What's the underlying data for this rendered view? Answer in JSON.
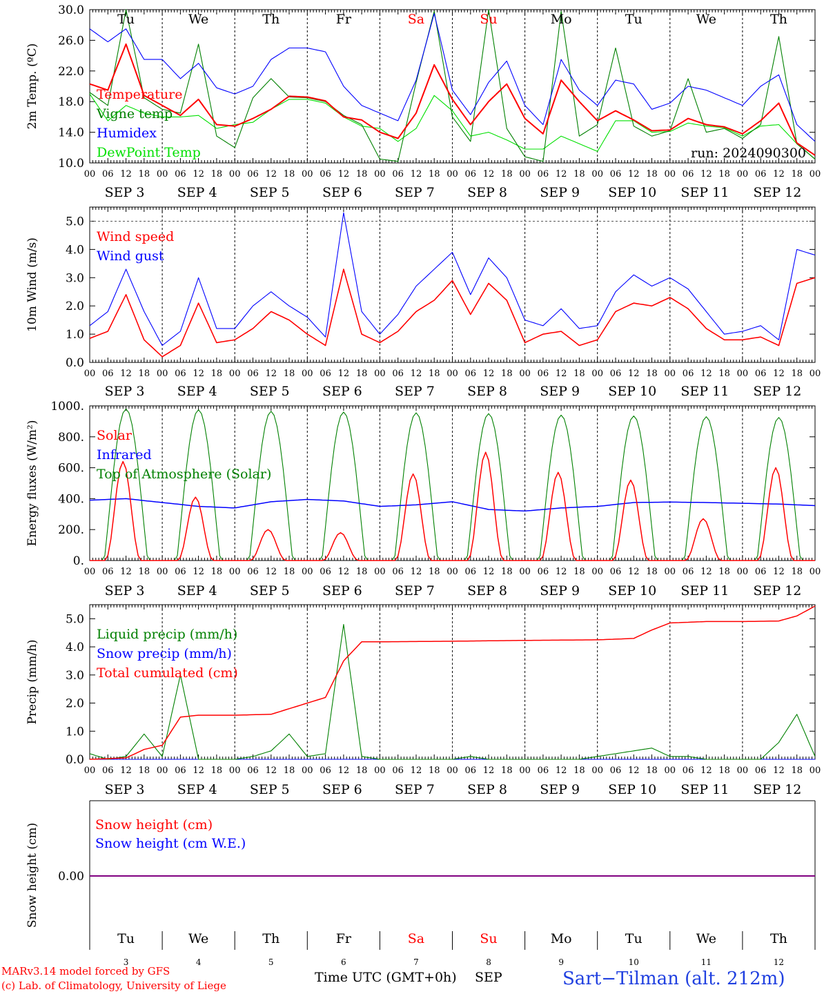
{
  "days": {
    "weekdays": [
      "Tu",
      "We",
      "Th",
      "Fr",
      "Sa",
      "Su",
      "Mo",
      "Tu",
      "We",
      "Th"
    ],
    "weekend_flags": [
      false,
      false,
      false,
      false,
      true,
      true,
      false,
      false,
      false,
      false
    ],
    "date_labels": [
      "SEP  3",
      "SEP  4",
      "SEP  5",
      "SEP  6",
      "SEP  7",
      "SEP  8",
      "SEP  9",
      "SEP 10",
      "SEP 11",
      "SEP 12"
    ],
    "day_numbers": [
      "3",
      "4",
      "5",
      "6",
      "7",
      "8",
      "9",
      "10",
      "11",
      "12"
    ],
    "hour_ticks": [
      "00",
      "06",
      "12",
      "18"
    ],
    "final_hour_tick": "00"
  },
  "colors": {
    "red": "#ff0000",
    "green": "#008000",
    "blue": "#0000ff",
    "lightgreen": "#00e000",
    "purple": "#800080",
    "weekend": "#ff0000",
    "axis": "#000000"
  },
  "chart_data": [
    {
      "type": "line",
      "ylabel": "2m Temp. (ºC)",
      "ylim": [
        10.0,
        30.0
      ],
      "yticks": [
        "10.0",
        "14.0",
        "18.0",
        "22.0",
        "26.0",
        "30.0"
      ],
      "annotation": "run: 2024090300",
      "x_unit": "hours since Sep 3 00 UTC",
      "series": [
        {
          "name": "Temperature",
          "color": "#ff0000",
          "x": [
            0,
            6,
            12,
            18,
            24,
            30,
            36,
            42,
            48,
            54,
            60,
            66,
            72,
            78,
            84,
            90,
            96,
            102,
            108,
            114,
            120,
            126,
            132,
            138,
            144,
            150,
            156,
            162,
            168,
            174,
            180,
            186,
            192,
            198,
            204,
            210,
            216,
            222,
            228,
            234,
            240
          ],
          "values": [
            20.3,
            19.5,
            25.5,
            18.8,
            17.5,
            16.2,
            18.3,
            15.0,
            14.8,
            15.8,
            17.0,
            18.7,
            18.6,
            18.1,
            16.0,
            15.6,
            14.0,
            13.2,
            16.5,
            22.8,
            18.3,
            15.0,
            18.0,
            20.3,
            15.8,
            13.8,
            20.8,
            18.0,
            15.5,
            16.8,
            15.6,
            14.2,
            14.3,
            15.8,
            15.0,
            14.7,
            13.8,
            15.5,
            17.8,
            12.6,
            11.0
          ]
        },
        {
          "name": "Vigne temp",
          "color": "#008000",
          "x": [
            0,
            6,
            12,
            18,
            24,
            30,
            36,
            42,
            48,
            54,
            60,
            66,
            72,
            78,
            84,
            90,
            96,
            102,
            108,
            114,
            120,
            126,
            132,
            138,
            144,
            150,
            156,
            162,
            168,
            174,
            180,
            186,
            192,
            198,
            204,
            210,
            216,
            222,
            228,
            234,
            240
          ],
          "values": [
            19.2,
            17.5,
            30.0,
            18.5,
            17.0,
            16.5,
            25.5,
            13.5,
            12.0,
            18.5,
            21.0,
            18.6,
            18.5,
            18.0,
            16.2,
            15.0,
            10.5,
            10.2,
            20.5,
            29.8,
            16.0,
            12.8,
            30.0,
            14.5,
            10.8,
            10.2,
            29.8,
            13.5,
            15.0,
            25.0,
            14.8,
            13.5,
            14.2,
            21.0,
            14.0,
            14.5,
            13.2,
            15.0,
            26.5,
            12.5,
            10.5
          ]
        },
        {
          "name": "Humidex",
          "color": "#0000ff",
          "x": [
            0,
            6,
            12,
            18,
            24,
            30,
            36,
            42,
            48,
            54,
            60,
            66,
            72,
            78,
            84,
            90,
            96,
            102,
            108,
            114,
            120,
            126,
            132,
            138,
            144,
            150,
            156,
            162,
            168,
            174,
            180,
            186,
            192,
            198,
            204,
            210,
            216,
            222,
            228,
            234,
            240
          ],
          "values": [
            27.5,
            25.8,
            27.5,
            23.5,
            23.5,
            21.0,
            23.0,
            19.8,
            19.0,
            20.0,
            23.5,
            25.0,
            25.0,
            24.5,
            20.0,
            17.5,
            16.5,
            15.5,
            20.8,
            29.5,
            19.5,
            16.3,
            20.5,
            23.3,
            17.5,
            15.0,
            23.5,
            19.5,
            17.5,
            20.8,
            20.3,
            17.0,
            17.8,
            20.0,
            19.5,
            18.5,
            17.5,
            20.0,
            21.5,
            15.0,
            12.8
          ]
        },
        {
          "name": "DewPoint Temp",
          "color": "#00e000",
          "x": [
            0,
            6,
            12,
            18,
            24,
            30,
            36,
            42,
            48,
            54,
            60,
            66,
            72,
            78,
            84,
            90,
            96,
            102,
            108,
            114,
            120,
            126,
            132,
            138,
            144,
            150,
            156,
            162,
            168,
            174,
            180,
            186,
            192,
            198,
            204,
            210,
            216,
            222,
            228,
            234,
            240
          ],
          "values": [
            19.0,
            15.5,
            17.5,
            16.5,
            16.0,
            16.0,
            16.2,
            14.5,
            15.0,
            15.3,
            17.0,
            18.3,
            18.3,
            17.8,
            16.0,
            14.8,
            14.5,
            12.8,
            14.5,
            18.8,
            16.8,
            13.5,
            14.0,
            13.0,
            11.8,
            11.8,
            13.5,
            12.5,
            11.5,
            15.5,
            15.5,
            14.0,
            14.1,
            15.2,
            14.8,
            14.6,
            13.5,
            14.8,
            15.0,
            12.5,
            10.5
          ]
        }
      ]
    },
    {
      "type": "line",
      "ylabel": "10m Wind (m/s)",
      "ylim": [
        0.0,
        5.5
      ],
      "yticks": [
        "0.0",
        "1.0",
        "2.0",
        "3.0",
        "4.0",
        "5.0"
      ],
      "reference_line": 5.0,
      "x_unit": "hours since Sep 3 00 UTC",
      "series": [
        {
          "name": "Wind speed",
          "color": "#ff0000",
          "x": [
            0,
            6,
            12,
            18,
            24,
            30,
            36,
            42,
            48,
            54,
            60,
            66,
            72,
            78,
            84,
            90,
            96,
            102,
            108,
            114,
            120,
            126,
            132,
            138,
            144,
            150,
            156,
            162,
            168,
            174,
            180,
            186,
            192,
            198,
            204,
            210,
            216,
            222,
            228,
            234,
            240
          ],
          "values": [
            0.85,
            1.1,
            2.4,
            0.8,
            0.2,
            0.6,
            2.1,
            0.7,
            0.8,
            1.2,
            1.8,
            1.5,
            1.0,
            0.6,
            3.3,
            1.0,
            0.7,
            1.1,
            1.8,
            2.2,
            2.9,
            1.7,
            2.8,
            2.2,
            0.7,
            1.0,
            1.1,
            0.6,
            0.8,
            1.8,
            2.1,
            2.0,
            2.3,
            1.9,
            1.2,
            0.8,
            0.8,
            0.9,
            0.6,
            2.8,
            3.0
          ]
        },
        {
          "name": "Wind gust",
          "color": "#0000ff",
          "x": [
            0,
            6,
            12,
            18,
            24,
            30,
            36,
            42,
            48,
            54,
            60,
            66,
            72,
            78,
            84,
            90,
            96,
            102,
            108,
            114,
            120,
            126,
            132,
            138,
            144,
            150,
            156,
            162,
            168,
            174,
            180,
            186,
            192,
            198,
            204,
            210,
            216,
            222,
            228,
            234,
            240
          ],
          "values": [
            1.3,
            1.8,
            3.3,
            1.8,
            0.6,
            1.1,
            3.0,
            1.2,
            1.2,
            2.0,
            2.5,
            2.0,
            1.6,
            0.9,
            5.3,
            1.8,
            1.0,
            1.7,
            2.7,
            3.3,
            3.9,
            2.4,
            3.7,
            3.0,
            1.5,
            1.3,
            1.9,
            1.2,
            1.3,
            2.5,
            3.1,
            2.7,
            3.0,
            2.6,
            1.8,
            1.0,
            1.1,
            1.3,
            0.8,
            4.0,
            3.8
          ]
        }
      ]
    },
    {
      "type": "line",
      "ylabel": "Energy fluxes (W/m²)",
      "ylim": [
        0,
        1000
      ],
      "yticks": [
        "0.",
        "200.",
        "400.",
        "600.",
        "800.",
        "1000."
      ],
      "x_unit": "hours since Sep 3 00 UTC",
      "series": [
        {
          "name": "Solar",
          "color": "#ff0000",
          "day_peaks": [
            640,
            410,
            200,
            180,
            560,
            700,
            570,
            520,
            270,
            600
          ]
        },
        {
          "name": "Infrared",
          "color": "#0000ff",
          "x": [
            0,
            12,
            24,
            36,
            48,
            60,
            72,
            84,
            96,
            108,
            120,
            132,
            144,
            156,
            168,
            180,
            192,
            204,
            216,
            228,
            240
          ],
          "values": [
            390,
            400,
            375,
            350,
            340,
            380,
            395,
            385,
            350,
            360,
            380,
            330,
            320,
            340,
            350,
            375,
            378,
            375,
            370,
            365,
            355
          ]
        },
        {
          "name": "Top of Atmosphere (Solar)",
          "color": "#008000",
          "day_peaks": [
            980,
            975,
            965,
            960,
            955,
            950,
            940,
            935,
            930,
            925
          ]
        }
      ]
    },
    {
      "type": "line",
      "ylabel": "Precip (mm/h)",
      "ylim": [
        0.0,
        5.5
      ],
      "yticks": [
        "0.0",
        "1.0",
        "2.0",
        "3.0",
        "4.0",
        "5.0"
      ],
      "x_unit": "hours since Sep 3 00 UTC",
      "series": [
        {
          "name": "Liquid precip (mm/h)",
          "color": "#008000",
          "x": [
            0,
            6,
            12,
            18,
            24,
            30,
            36,
            42,
            48,
            54,
            60,
            66,
            72,
            78,
            84,
            90,
            96,
            102,
            108,
            114,
            120,
            126,
            132,
            138,
            144,
            150,
            156,
            162,
            168,
            174,
            180,
            186,
            192,
            198,
            204,
            210,
            216,
            222,
            228,
            234,
            240
          ],
          "values": [
            0.2,
            0.0,
            0.1,
            0.9,
            0.1,
            3.0,
            0.0,
            0.0,
            0.0,
            0.1,
            0.3,
            0.9,
            0.1,
            0.2,
            4.8,
            0.1,
            0.0,
            0.0,
            0.0,
            0.0,
            0.0,
            0.1,
            0.0,
            0.0,
            0.0,
            0.0,
            0.0,
            0.0,
            0.1,
            0.2,
            0.3,
            0.4,
            0.1,
            0.1,
            0.0,
            0.0,
            0.0,
            0.0,
            0.6,
            1.6,
            0.1
          ]
        },
        {
          "name": "Snow precip (mm/h)",
          "color": "#0000ff",
          "x": [
            0,
            240
          ],
          "values": [
            0.0,
            0.0
          ]
        },
        {
          "name": "Total cumulated (cm)",
          "color": "#ff0000",
          "x": [
            0,
            12,
            18,
            24,
            30,
            36,
            48,
            60,
            66,
            72,
            78,
            84,
            90,
            96,
            120,
            144,
            168,
            180,
            186,
            192,
            204,
            216,
            228,
            234,
            240
          ],
          "values": [
            0.0,
            0.05,
            0.35,
            0.5,
            1.5,
            1.57,
            1.57,
            1.6,
            1.8,
            2.0,
            2.2,
            3.5,
            4.18,
            4.18,
            4.2,
            4.23,
            4.25,
            4.3,
            4.6,
            4.85,
            4.9,
            4.9,
            4.92,
            5.1,
            5.45
          ]
        }
      ]
    },
    {
      "type": "line",
      "ylabel": "Snow height (cm)",
      "yticks": [
        "0.00"
      ],
      "series": [
        {
          "name": "Snow height (cm)",
          "color": "#ff0000",
          "x": [
            0,
            240
          ],
          "values": [
            0,
            0
          ]
        },
        {
          "name": "Snow height (cm W.E.)",
          "color": "#0000ff",
          "x": [
            0,
            240
          ],
          "values": [
            0,
            0
          ]
        }
      ]
    }
  ],
  "footer": {
    "credit_1": "MARv3.14 model forced by GFS",
    "credit_2": "(c) Lab. of Climatology, University of Liege",
    "axis_title": "Time UTC (GMT+0h)",
    "month": "SEP",
    "station": "Sart−Tilman (alt. 212m)"
  }
}
